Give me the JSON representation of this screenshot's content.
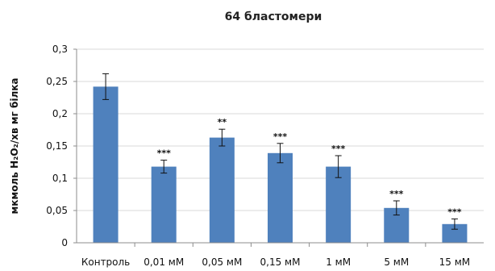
{
  "chart_data": {
    "type": "bar",
    "title": "64 бластомери",
    "ylabel": "мкмоль H₂O₂/хв мг білка",
    "xlabel": "",
    "categories": [
      "Контроль",
      "0,01 мМ",
      "0,05 мМ",
      "0,15 мМ",
      "1 мМ",
      "5 мМ",
      "15 мМ"
    ],
    "values": [
      0.242,
      0.118,
      0.163,
      0.139,
      0.118,
      0.054,
      0.029
    ],
    "errors": [
      0.02,
      0.01,
      0.013,
      0.015,
      0.017,
      0.011,
      0.008
    ],
    "significance": [
      "",
      "***",
      "**",
      "***",
      "***",
      "***",
      "***"
    ],
    "ylim": [
      0,
      0.3
    ],
    "yticks": [
      0,
      0.05,
      0.1,
      0.15,
      0.2,
      0.25,
      0.3
    ],
    "ytick_labels": [
      "0",
      "0,05",
      "0,1",
      "0,15",
      "0,2",
      "0,25",
      "0,3"
    ],
    "grid": true,
    "legend": "none",
    "bar_color": "#4f81bd"
  }
}
